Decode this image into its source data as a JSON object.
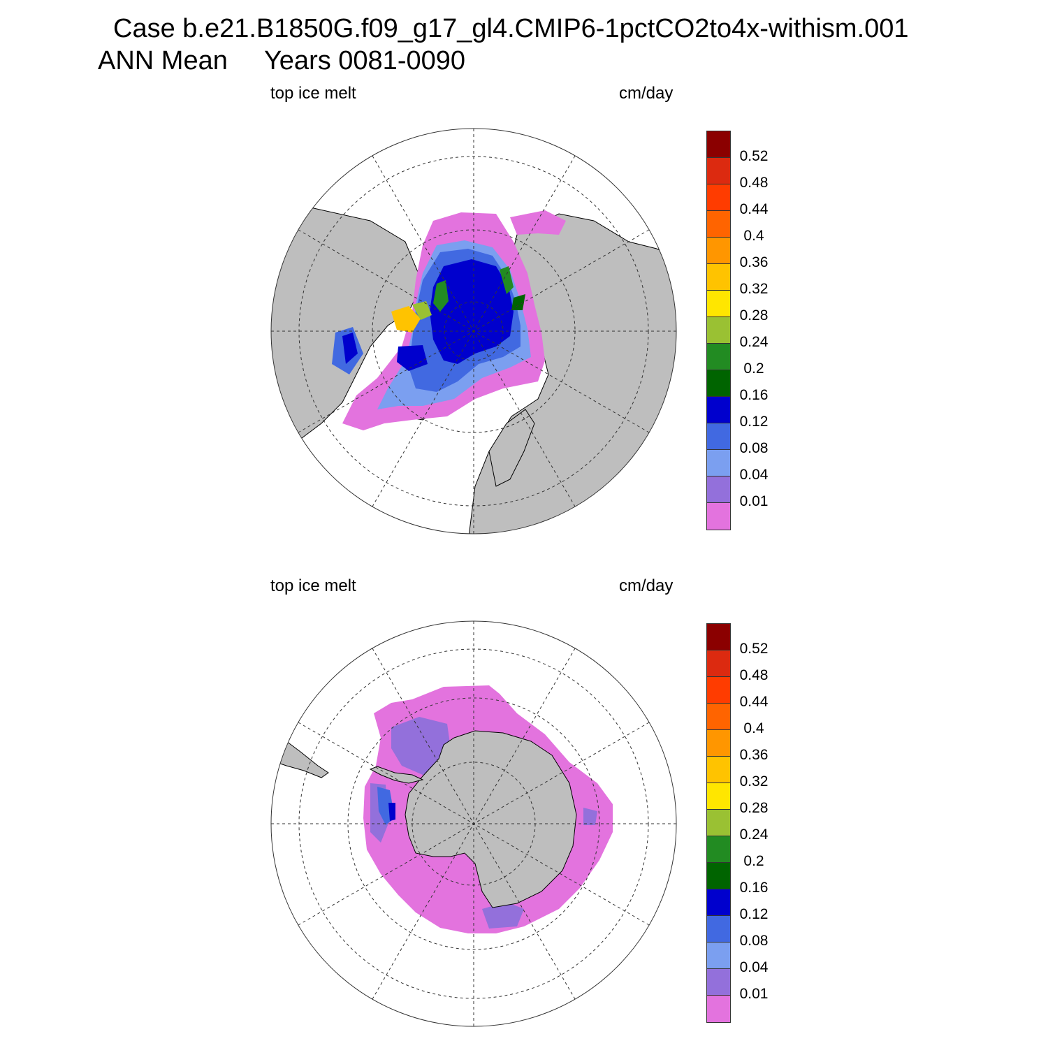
{
  "title": {
    "line1": "Case b.e21.B1850G.f09_g17_gl4.CMIP6-1pctCO2to4x-withism.001",
    "line2": "ANN Mean     Years 0081-0090"
  },
  "panels": [
    {
      "left_label": "top ice melt",
      "right_label": "cm/day",
      "hemisphere": "north"
    },
    {
      "left_label": "top ice melt",
      "right_label": "cm/day",
      "hemisphere": "south"
    }
  ],
  "colorbar": {
    "labels": [
      "0.52",
      "0.48",
      "0.44",
      "0.4",
      "0.36",
      "0.32",
      "0.28",
      "0.24",
      "0.2",
      "0.16",
      "0.12",
      "0.08",
      "0.04",
      "0.01"
    ],
    "colors": [
      "#8b0000",
      "#dc2a10",
      "#ff3c00",
      "#ff6400",
      "#ff9600",
      "#ffc300",
      "#ffe600",
      "#9ac133",
      "#228b22",
      "#006400",
      "#0000cd",
      "#4169e1",
      "#7b9ff0",
      "#9370db",
      "#e373de"
    ]
  },
  "colors": {
    "land": "#bebebe",
    "ocean": "#ffffff",
    "grid": "#333333"
  }
}
